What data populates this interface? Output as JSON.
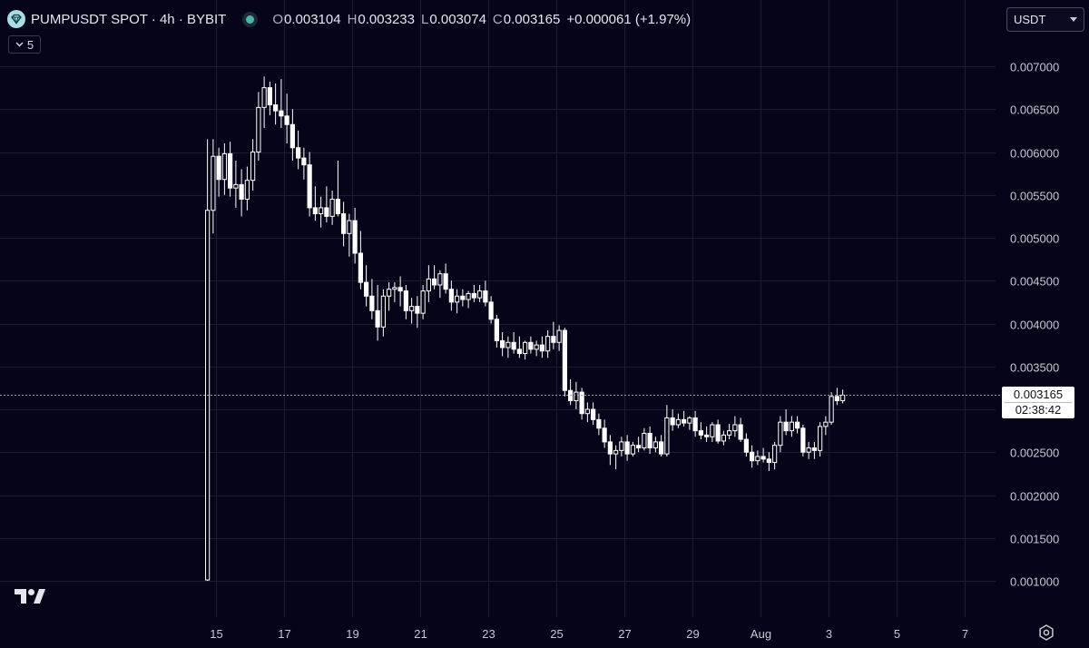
{
  "header": {
    "symbol_title": "PUMPUSDT SPOT · 4h · BYBIT",
    "ohlc": [
      {
        "label": "O",
        "value": "0.003104"
      },
      {
        "label": "H",
        "value": "0.003233"
      },
      {
        "label": "L",
        "value": "0.003074"
      },
      {
        "label": "C",
        "value": "0.003165"
      }
    ],
    "change": "+0.000061 (+1.97%)",
    "indicator_count": "5",
    "currency": "USDT"
  },
  "last_price": {
    "value": "0.003165",
    "countdown": "02:38:42"
  },
  "colors": {
    "background": "#060419",
    "candle": "#ffffff",
    "grid": "#1d1c30",
    "text": "#d8d8e0"
  },
  "icons": [
    "pump-logo-icon",
    "chevron-down-icon",
    "tradingview-logo-icon",
    "settings-gear-icon"
  ],
  "chart_data": {
    "type": "candlestick",
    "interval": "4h",
    "y_ticks": [
      "0.007000",
      "0.006500",
      "0.006000",
      "0.005500",
      "0.005000",
      "0.004500",
      "0.004000",
      "0.003500",
      "0.003000",
      "0.002500",
      "0.002000",
      "0.001500",
      "0.001000"
    ],
    "y_tick_values": [
      0.007,
      0.0065,
      0.006,
      0.0055,
      0.005,
      0.0045,
      0.004,
      0.0035,
      0.003,
      0.0025,
      0.002,
      0.0015,
      0.001
    ],
    "ylim": [
      0.0008,
      0.0074
    ],
    "x_ticks": [
      "15",
      "17",
      "19",
      "21",
      "23",
      "25",
      "27",
      "29",
      "Aug",
      "3",
      "5",
      "7"
    ],
    "x_tick_days": [
      15,
      17,
      19,
      21,
      23,
      25,
      27,
      29,
      31,
      33,
      35,
      37
    ],
    "xlim": [
      13.1,
      38.6
    ],
    "candles_per_day": 6,
    "first_candle_day": 14.75,
    "candles": [
      [
        0.00101,
        0.00615,
        0.001,
        0.00532
      ],
      [
        0.00532,
        0.00615,
        0.00505,
        0.00595
      ],
      [
        0.00595,
        0.00605,
        0.00548,
        0.00568
      ],
      [
        0.00568,
        0.0061,
        0.0055,
        0.00598
      ],
      [
        0.00598,
        0.00612,
        0.00548,
        0.00558
      ],
      [
        0.00558,
        0.0059,
        0.00535,
        0.00562
      ],
      [
        0.00562,
        0.0058,
        0.00525,
        0.00545
      ],
      [
        0.00545,
        0.00583,
        0.00532,
        0.00567
      ],
      [
        0.00567,
        0.00615,
        0.00555,
        0.006
      ],
      [
        0.006,
        0.0067,
        0.0059,
        0.00652
      ],
      [
        0.00652,
        0.00688,
        0.00628,
        0.00675
      ],
      [
        0.00675,
        0.00682,
        0.00643,
        0.00655
      ],
      [
        0.00655,
        0.0068,
        0.00632,
        0.00648
      ],
      [
        0.00648,
        0.00685,
        0.00628,
        0.00642
      ],
      [
        0.00642,
        0.00668,
        0.0061,
        0.00632
      ],
      [
        0.00632,
        0.0065,
        0.0059,
        0.00605
      ],
      [
        0.00605,
        0.00625,
        0.0058,
        0.00593
      ],
      [
        0.00593,
        0.00605,
        0.00568,
        0.00585
      ],
      [
        0.00585,
        0.006,
        0.00525,
        0.00535
      ],
      [
        0.00535,
        0.0056,
        0.0052,
        0.00528
      ],
      [
        0.00528,
        0.00548,
        0.00512,
        0.00535
      ],
      [
        0.00535,
        0.0056,
        0.00518,
        0.00525
      ],
      [
        0.00525,
        0.00555,
        0.00515,
        0.00545
      ],
      [
        0.00545,
        0.0059,
        0.00525,
        0.00528
      ],
      [
        0.00528,
        0.00542,
        0.0049,
        0.00505
      ],
      [
        0.00505,
        0.00528,
        0.00478,
        0.0052
      ],
      [
        0.0052,
        0.00535,
        0.0047,
        0.00482
      ],
      [
        0.00482,
        0.00508,
        0.0044,
        0.00448
      ],
      [
        0.00448,
        0.00468,
        0.0042,
        0.00432
      ],
      [
        0.00432,
        0.00452,
        0.00405,
        0.00415
      ],
      [
        0.00415,
        0.00445,
        0.0038,
        0.00396
      ],
      [
        0.00396,
        0.0044,
        0.00385,
        0.00432
      ],
      [
        0.00432,
        0.00448,
        0.00415,
        0.0044
      ],
      [
        0.0044,
        0.00448,
        0.00425,
        0.00442
      ],
      [
        0.00442,
        0.00455,
        0.0042,
        0.00438
      ],
      [
        0.00438,
        0.00445,
        0.00405,
        0.00415
      ],
      [
        0.00415,
        0.0043,
        0.004,
        0.0042
      ],
      [
        0.0042,
        0.00432,
        0.00395,
        0.00412
      ],
      [
        0.00412,
        0.00445,
        0.00405,
        0.00438
      ],
      [
        0.00438,
        0.00468,
        0.00425,
        0.00452
      ],
      [
        0.00452,
        0.00468,
        0.0044,
        0.00445
      ],
      [
        0.00445,
        0.00462,
        0.0043,
        0.00458
      ],
      [
        0.00458,
        0.0047,
        0.00435,
        0.0044
      ],
      [
        0.0044,
        0.0045,
        0.00415,
        0.00425
      ],
      [
        0.00425,
        0.0044,
        0.00412,
        0.00432
      ],
      [
        0.00432,
        0.0044,
        0.0042,
        0.00428
      ],
      [
        0.00428,
        0.00438,
        0.00418,
        0.00435
      ],
      [
        0.00435,
        0.00445,
        0.00425,
        0.0043
      ],
      [
        0.0043,
        0.00445,
        0.00425,
        0.00438
      ],
      [
        0.00438,
        0.0045,
        0.0042,
        0.00425
      ],
      [
        0.00425,
        0.00432,
        0.004,
        0.00405
      ],
      [
        0.00405,
        0.0041,
        0.00372,
        0.0038
      ],
      [
        0.0038,
        0.0039,
        0.00362,
        0.00372
      ],
      [
        0.00372,
        0.00385,
        0.0036,
        0.00378
      ],
      [
        0.00378,
        0.0039,
        0.00365,
        0.0037
      ],
      [
        0.0037,
        0.00385,
        0.0036,
        0.00365
      ],
      [
        0.00365,
        0.0038,
        0.00358,
        0.00378
      ],
      [
        0.00378,
        0.00385,
        0.00365,
        0.0037
      ],
      [
        0.0037,
        0.0038,
        0.00362,
        0.00375
      ],
      [
        0.00375,
        0.00385,
        0.0036,
        0.00368
      ],
      [
        0.00368,
        0.00392,
        0.0036,
        0.00385
      ],
      [
        0.00385,
        0.00402,
        0.0037,
        0.00378
      ],
      [
        0.00378,
        0.00398,
        0.00368,
        0.00392
      ],
      [
        0.00392,
        0.00395,
        0.00315,
        0.00322
      ],
      [
        0.00322,
        0.00335,
        0.00305,
        0.0031
      ],
      [
        0.0031,
        0.00332,
        0.003,
        0.0032
      ],
      [
        0.0032,
        0.00325,
        0.00288,
        0.00295
      ],
      [
        0.00295,
        0.00308,
        0.00285,
        0.003
      ],
      [
        0.003,
        0.00308,
        0.00282,
        0.00288
      ],
      [
        0.00288,
        0.00295,
        0.0027,
        0.00278
      ],
      [
        0.00278,
        0.00288,
        0.00255,
        0.00262
      ],
      [
        0.00262,
        0.0027,
        0.00235,
        0.00248
      ],
      [
        0.00248,
        0.00258,
        0.0023,
        0.00252
      ],
      [
        0.00252,
        0.00268,
        0.00245,
        0.00262
      ],
      [
        0.00262,
        0.0027,
        0.0024,
        0.00248
      ],
      [
        0.00248,
        0.00262,
        0.00245,
        0.00258
      ],
      [
        0.00258,
        0.00268,
        0.0025,
        0.00255
      ],
      [
        0.00255,
        0.00278,
        0.00252,
        0.00272
      ],
      [
        0.00272,
        0.0028,
        0.00248,
        0.00255
      ],
      [
        0.00255,
        0.00268,
        0.0025,
        0.00262
      ],
      [
        0.00262,
        0.0027,
        0.00245,
        0.00248
      ],
      [
        0.00248,
        0.00305,
        0.00245,
        0.0029
      ],
      [
        0.0029,
        0.003,
        0.00275,
        0.00282
      ],
      [
        0.00282,
        0.00295,
        0.00278,
        0.00288
      ],
      [
        0.00288,
        0.00298,
        0.0028,
        0.00284
      ],
      [
        0.00284,
        0.00292,
        0.00276,
        0.0029
      ],
      [
        0.0029,
        0.00298,
        0.00268,
        0.00275
      ],
      [
        0.00275,
        0.00285,
        0.00265,
        0.0027
      ],
      [
        0.0027,
        0.0028,
        0.00262,
        0.00268
      ],
      [
        0.00268,
        0.00285,
        0.00262,
        0.00282
      ],
      [
        0.00282,
        0.00288,
        0.0026,
        0.00263
      ],
      [
        0.00263,
        0.00275,
        0.00258,
        0.0027
      ],
      [
        0.0027,
        0.00283,
        0.00265,
        0.00275
      ],
      [
        0.00275,
        0.00292,
        0.00268,
        0.00282
      ],
      [
        0.00282,
        0.0029,
        0.00262,
        0.00265
      ],
      [
        0.00265,
        0.00272,
        0.00245,
        0.0025
      ],
      [
        0.0025,
        0.00258,
        0.00232,
        0.0024
      ],
      [
        0.0024,
        0.00252,
        0.00235,
        0.00245
      ],
      [
        0.00245,
        0.00255,
        0.00238,
        0.00242
      ],
      [
        0.00242,
        0.0025,
        0.00228,
        0.00238
      ],
      [
        0.00238,
        0.00262,
        0.0023,
        0.00258
      ],
      [
        0.00258,
        0.00292,
        0.0025,
        0.00285
      ],
      [
        0.00285,
        0.003,
        0.0027,
        0.00275
      ],
      [
        0.00275,
        0.00292,
        0.00268,
        0.00285
      ],
      [
        0.00285,
        0.00292,
        0.00272,
        0.00278
      ],
      [
        0.00278,
        0.00282,
        0.00245,
        0.0025
      ],
      [
        0.0025,
        0.00262,
        0.00242,
        0.00255
      ],
      [
        0.00255,
        0.00262,
        0.00242,
        0.00252
      ],
      [
        0.00252,
        0.00285,
        0.00245,
        0.0028
      ],
      [
        0.0028,
        0.00292,
        0.0027,
        0.00285
      ],
      [
        0.00285,
        0.0032,
        0.00282,
        0.00315
      ],
      [
        0.00315,
        0.00325,
        0.00305,
        0.0031
      ],
      [
        0.0031,
        0.00323,
        0.00307,
        0.003165
      ]
    ]
  }
}
